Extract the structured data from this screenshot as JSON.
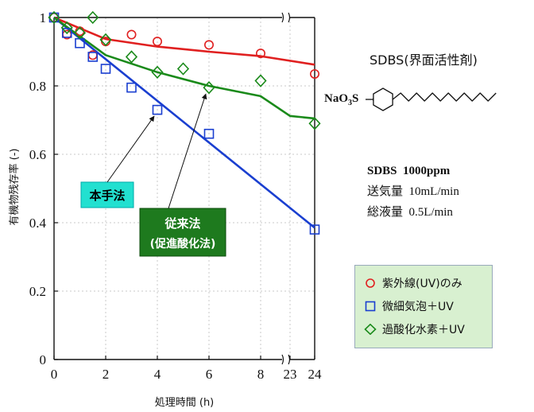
{
  "chart_data": {
    "type": "scatter",
    "ylabel": "有機物残存率 (-)",
    "xlabel": "処理時間 (h)",
    "xticks": [
      "0",
      "2",
      "4",
      "6",
      "8",
      "23",
      "24"
    ],
    "yticks": [
      "0",
      "0.2",
      "0.4",
      "0.6",
      "0.8",
      "1"
    ],
    "ylim": [
      0,
      1
    ],
    "axis_break": "between 8 and 23",
    "legend_position": "lower-right outside plot",
    "series": [
      {
        "name": "紫外線(UV)のみ",
        "marker": "circle",
        "color": "#e02020",
        "points": [
          [
            0,
            1.0
          ],
          [
            0.5,
            0.95
          ],
          [
            1,
            0.96
          ],
          [
            1.5,
            0.89
          ],
          [
            2,
            0.93
          ],
          [
            3,
            0.95
          ],
          [
            4,
            0.93
          ],
          [
            6,
            0.92
          ],
          [
            8,
            0.895
          ],
          [
            24,
            0.835
          ]
        ],
        "fit": [
          [
            0,
            1.0
          ],
          [
            2,
            0.937
          ],
          [
            4,
            0.915
          ],
          [
            6,
            0.9
          ],
          [
            8,
            0.887
          ],
          [
            24,
            0.862
          ]
        ]
      },
      {
        "name": "微細気泡＋UV",
        "marker": "square",
        "color": "#1a3fd0",
        "points": [
          [
            0,
            1.0
          ],
          [
            0.5,
            0.955
          ],
          [
            1,
            0.925
          ],
          [
            1.5,
            0.885
          ],
          [
            2,
            0.85
          ],
          [
            3,
            0.795
          ],
          [
            4,
            0.73
          ],
          [
            6,
            0.66
          ],
          [
            24,
            0.38
          ]
        ],
        "fit": [
          [
            0,
            1.0
          ],
          [
            24,
            0.385
          ]
        ]
      },
      {
        "name": "過酸化水素＋UV",
        "marker": "diamond",
        "color": "#1a8a1a",
        "points": [
          [
            0,
            1.0
          ],
          [
            0.5,
            0.97
          ],
          [
            1,
            0.955
          ],
          [
            1.5,
            1.0
          ],
          [
            2,
            0.935
          ],
          [
            3,
            0.885
          ],
          [
            4,
            0.84
          ],
          [
            5,
            0.85
          ],
          [
            6,
            0.795
          ],
          [
            8,
            0.815
          ],
          [
            24,
            0.69
          ]
        ],
        "fit": [
          [
            0,
            1.0
          ],
          [
            2,
            0.89
          ],
          [
            4,
            0.84
          ],
          [
            6,
            0.8
          ],
          [
            8,
            0.77
          ],
          [
            23,
            0.712
          ],
          [
            24,
            0.705
          ]
        ]
      }
    ],
    "annotations": [
      {
        "text": "本手法",
        "box_color": "#22e0d0",
        "text_color": "#000000",
        "points_to_x": 4,
        "points_to_y": 0.73
      },
      {
        "text": "従来法\n(促進酸化法)",
        "line1": "従来法",
        "line2": "(促進酸化法)",
        "box_color": "#1e7a1e",
        "text_color": "#ffffff",
        "points_to_x": 6,
        "points_to_y": 0.795
      }
    ]
  },
  "side_panel": {
    "compound_title": "SDBS(界面活性剤)",
    "molecule_head": "NaO",
    "molecule_sub": "3",
    "molecule_s": "S",
    "conditions": [
      {
        "label": "SDBS",
        "value": "1000ppm"
      },
      {
        "label": "送気量",
        "value": "10mL/min"
      },
      {
        "label": "総液量",
        "value": "0.5L/min"
      }
    ]
  }
}
